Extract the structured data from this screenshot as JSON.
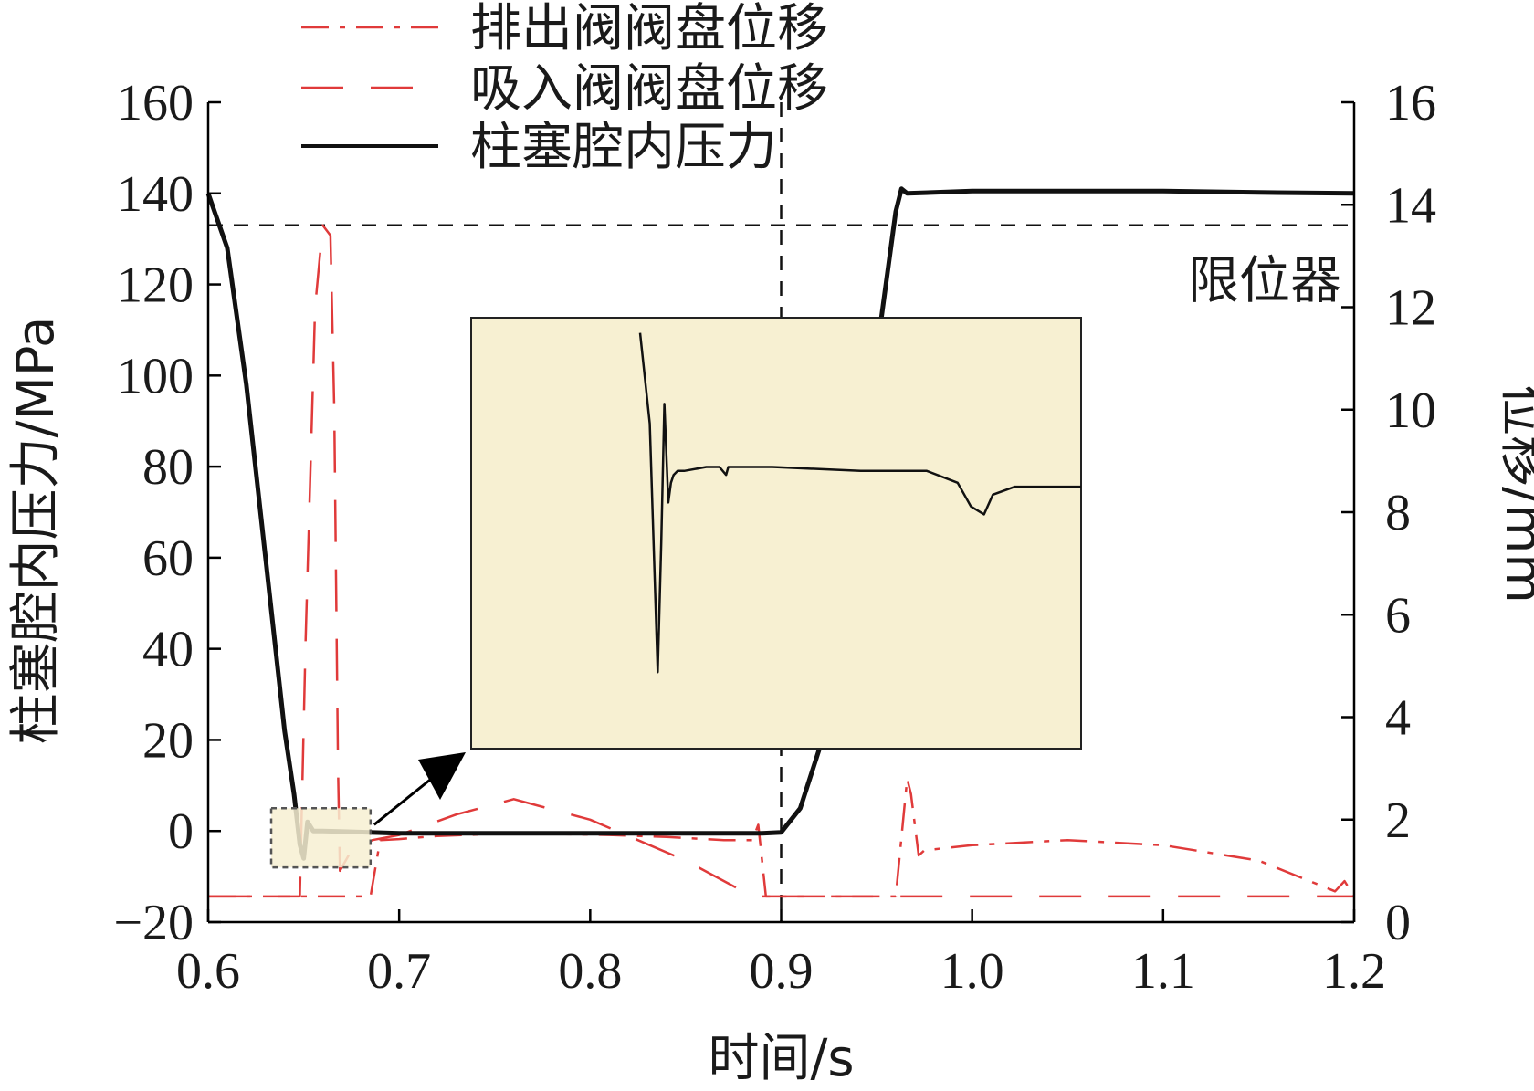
{
  "chart_data": {
    "type": "line",
    "xlabel": "时间/s",
    "ylabel_left": "柱塞腔内压力/MPa",
    "ylabel_right": "位移/mm",
    "xlim": [
      0.6,
      1.2
    ],
    "ylim_left": [
      -20,
      160
    ],
    "ylim_right": [
      0,
      16
    ],
    "x_ticks": [
      0.6,
      0.7,
      0.8,
      0.9,
      1.0,
      1.1,
      1.2
    ],
    "x_tick_labels": [
      "0.6",
      "0.7",
      "0.8",
      "0.9",
      "1.0",
      "1.1",
      "1.2"
    ],
    "left_ticks": [
      -20,
      0,
      20,
      40,
      60,
      80,
      100,
      120,
      140,
      160
    ],
    "left_tick_labels": [
      "−20",
      "0",
      "20",
      "40",
      "60",
      "80",
      "100",
      "120",
      "140",
      "160"
    ],
    "right_ticks": [
      0,
      2,
      4,
      6,
      8,
      10,
      12,
      14,
      16
    ],
    "right_tick_labels": [
      "0",
      "2",
      "4",
      "6",
      "8",
      "10",
      "12",
      "14",
      "16"
    ],
    "legend_position": "top-left",
    "colors": {
      "pressure": "#111111",
      "discharge": "#e03a3a",
      "suction": "#e03a3a",
      "zoom_fill": "#f7f0d2",
      "reference": "#111111"
    },
    "series": [
      {
        "name": "排出阀阀盘位移",
        "axis": "right",
        "style": "dash-dot",
        "x": [
          0.6,
          0.685,
          0.69,
          0.7,
          0.72,
          0.75,
          0.78,
          0.81,
          0.84,
          0.87,
          0.885,
          0.888,
          0.892,
          0.9,
          0.96,
          0.966,
          0.968,
          0.972,
          0.975,
          1.0,
          1.05,
          1.1,
          1.15,
          1.19,
          1.195,
          1.2
        ],
        "y": [
          0.5,
          0.5,
          1.6,
          1.62,
          1.68,
          1.72,
          1.72,
          1.7,
          1.66,
          1.6,
          1.6,
          1.9,
          0.5,
          0.5,
          0.5,
          2.8,
          2.5,
          1.3,
          1.4,
          1.5,
          1.6,
          1.5,
          1.2,
          0.6,
          0.8,
          0.5
        ]
      },
      {
        "name": "吸入阀阀盘位移",
        "axis": "right",
        "style": "dashed",
        "x": [
          0.6,
          0.648,
          0.651,
          0.656,
          0.66,
          0.664,
          0.666,
          0.668,
          0.669,
          0.672,
          0.675,
          0.68,
          0.686,
          0.7,
          0.73,
          0.76,
          0.8,
          0.85,
          0.88,
          0.89,
          0.9,
          1.2
        ],
        "y": [
          0.5,
          0.5,
          5.5,
          12.0,
          13.6,
          13.4,
          10.0,
          3.0,
          1.0,
          1.2,
          1.4,
          1.5,
          1.6,
          1.7,
          2.1,
          2.4,
          2.0,
          1.2,
          0.6,
          0.5,
          0.5,
          0.5
        ]
      },
      {
        "name": "柱塞腔内压力",
        "axis": "left",
        "style": "solid",
        "x": [
          0.6,
          0.61,
          0.62,
          0.63,
          0.64,
          0.645,
          0.648,
          0.65,
          0.652,
          0.655,
          0.66,
          0.7,
          0.8,
          0.89,
          0.9,
          0.91,
          0.92,
          0.93,
          0.94,
          0.95,
          0.96,
          0.963,
          0.966,
          1.0,
          1.05,
          1.1,
          1.15,
          1.2
        ],
        "y": [
          140,
          128,
          98,
          60,
          22,
          8,
          -3,
          -6,
          2,
          0,
          0,
          -0.5,
          -0.5,
          -0.5,
          -0.3,
          5,
          18,
          40,
          70,
          105,
          136,
          141,
          140,
          140.5,
          140.5,
          140.5,
          140.2,
          140
        ]
      }
    ],
    "reference_lines": [
      {
        "orientation": "horizontal",
        "axis": "right",
        "value": 13.6,
        "style": "dashed",
        "label": "限位器"
      },
      {
        "orientation": "vertical",
        "value": 0.9,
        "style": "dashed"
      }
    ],
    "inset": {
      "description": "zoomed pressure oscillation",
      "source_box_x": [
        0.633,
        0.685
      ],
      "source_box_y_left": [
        -8,
        5
      ],
      "trace": [
        [
          0,
          0.02
        ],
        [
          0.022,
          0.25
        ],
        [
          0.04,
          0.88
        ],
        [
          0.048,
          0.55
        ],
        [
          0.055,
          0.2
        ],
        [
          0.064,
          0.45
        ],
        [
          0.07,
          0.4
        ],
        [
          0.076,
          0.38
        ],
        [
          0.085,
          0.37
        ],
        [
          0.1,
          0.37
        ],
        [
          0.15,
          0.36
        ],
        [
          0.18,
          0.36
        ],
        [
          0.195,
          0.38
        ],
        [
          0.2,
          0.36
        ],
        [
          0.3,
          0.36
        ],
        [
          0.5,
          0.37
        ],
        [
          0.65,
          0.37
        ],
        [
          0.72,
          0.4
        ],
        [
          0.75,
          0.46
        ],
        [
          0.78,
          0.48
        ],
        [
          0.8,
          0.43
        ],
        [
          0.85,
          0.41
        ],
        [
          0.9,
          0.41
        ],
        [
          1.0,
          0.41
        ]
      ]
    }
  }
}
